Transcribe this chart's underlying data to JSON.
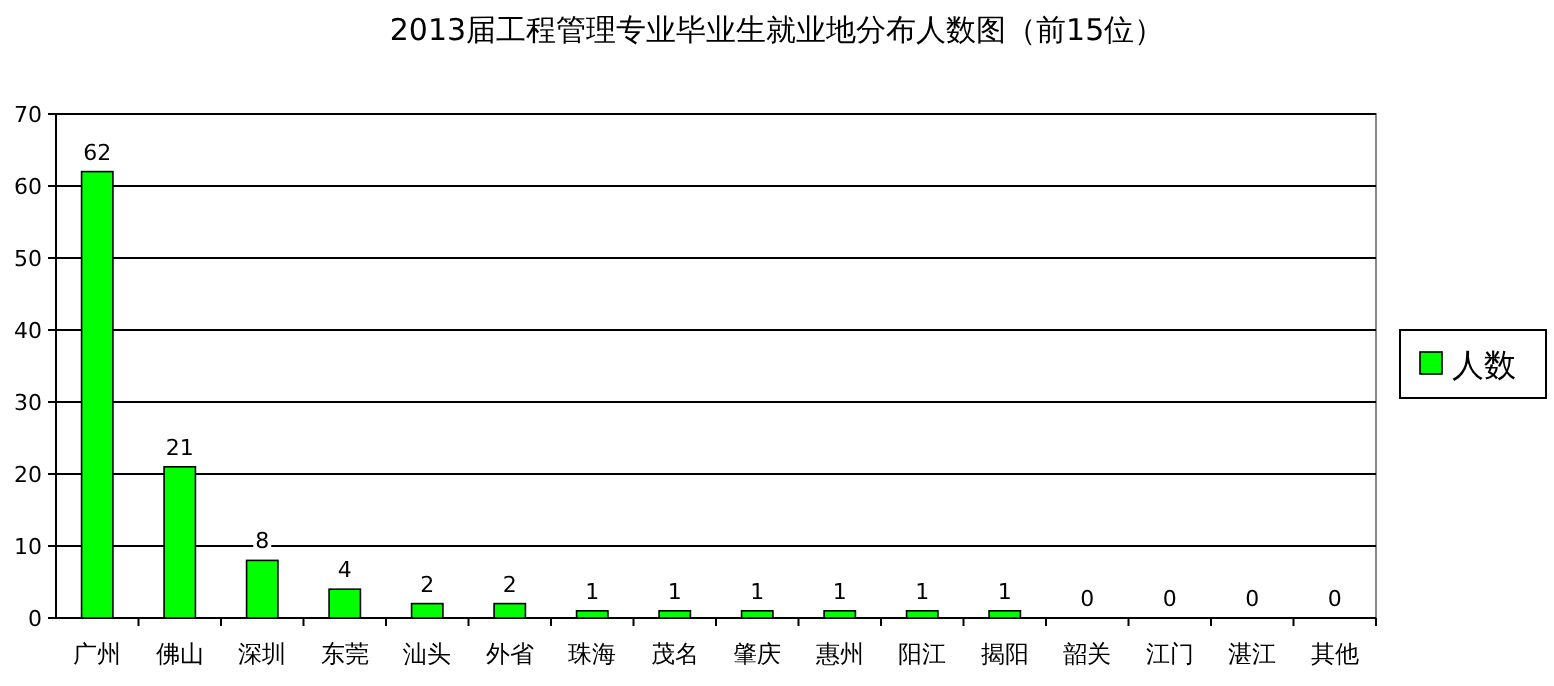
{
  "chart_data": {
    "type": "bar",
    "title": "2013届工程管理专业毕业生就业地分布人数图（前15位）",
    "categories": [
      "广州",
      "佛山",
      "深圳",
      "东莞",
      "汕头",
      "外省",
      "珠海",
      "茂名",
      "肇庆",
      "惠州",
      "阳江",
      "揭阳",
      "韶关",
      "江门",
      "湛江",
      "其他"
    ],
    "series": [
      {
        "name": "人数",
        "color": "#00ff00",
        "values": [
          62,
          21,
          8,
          4,
          2,
          2,
          1,
          1,
          1,
          1,
          1,
          1,
          0,
          0,
          0,
          0
        ]
      }
    ],
    "ylim": [
      0,
      70
    ],
    "yticks": [
      0,
      10,
      20,
      30,
      40,
      50,
      60,
      70
    ],
    "grid": "y",
    "legend": "right",
    "data_labels": true
  }
}
